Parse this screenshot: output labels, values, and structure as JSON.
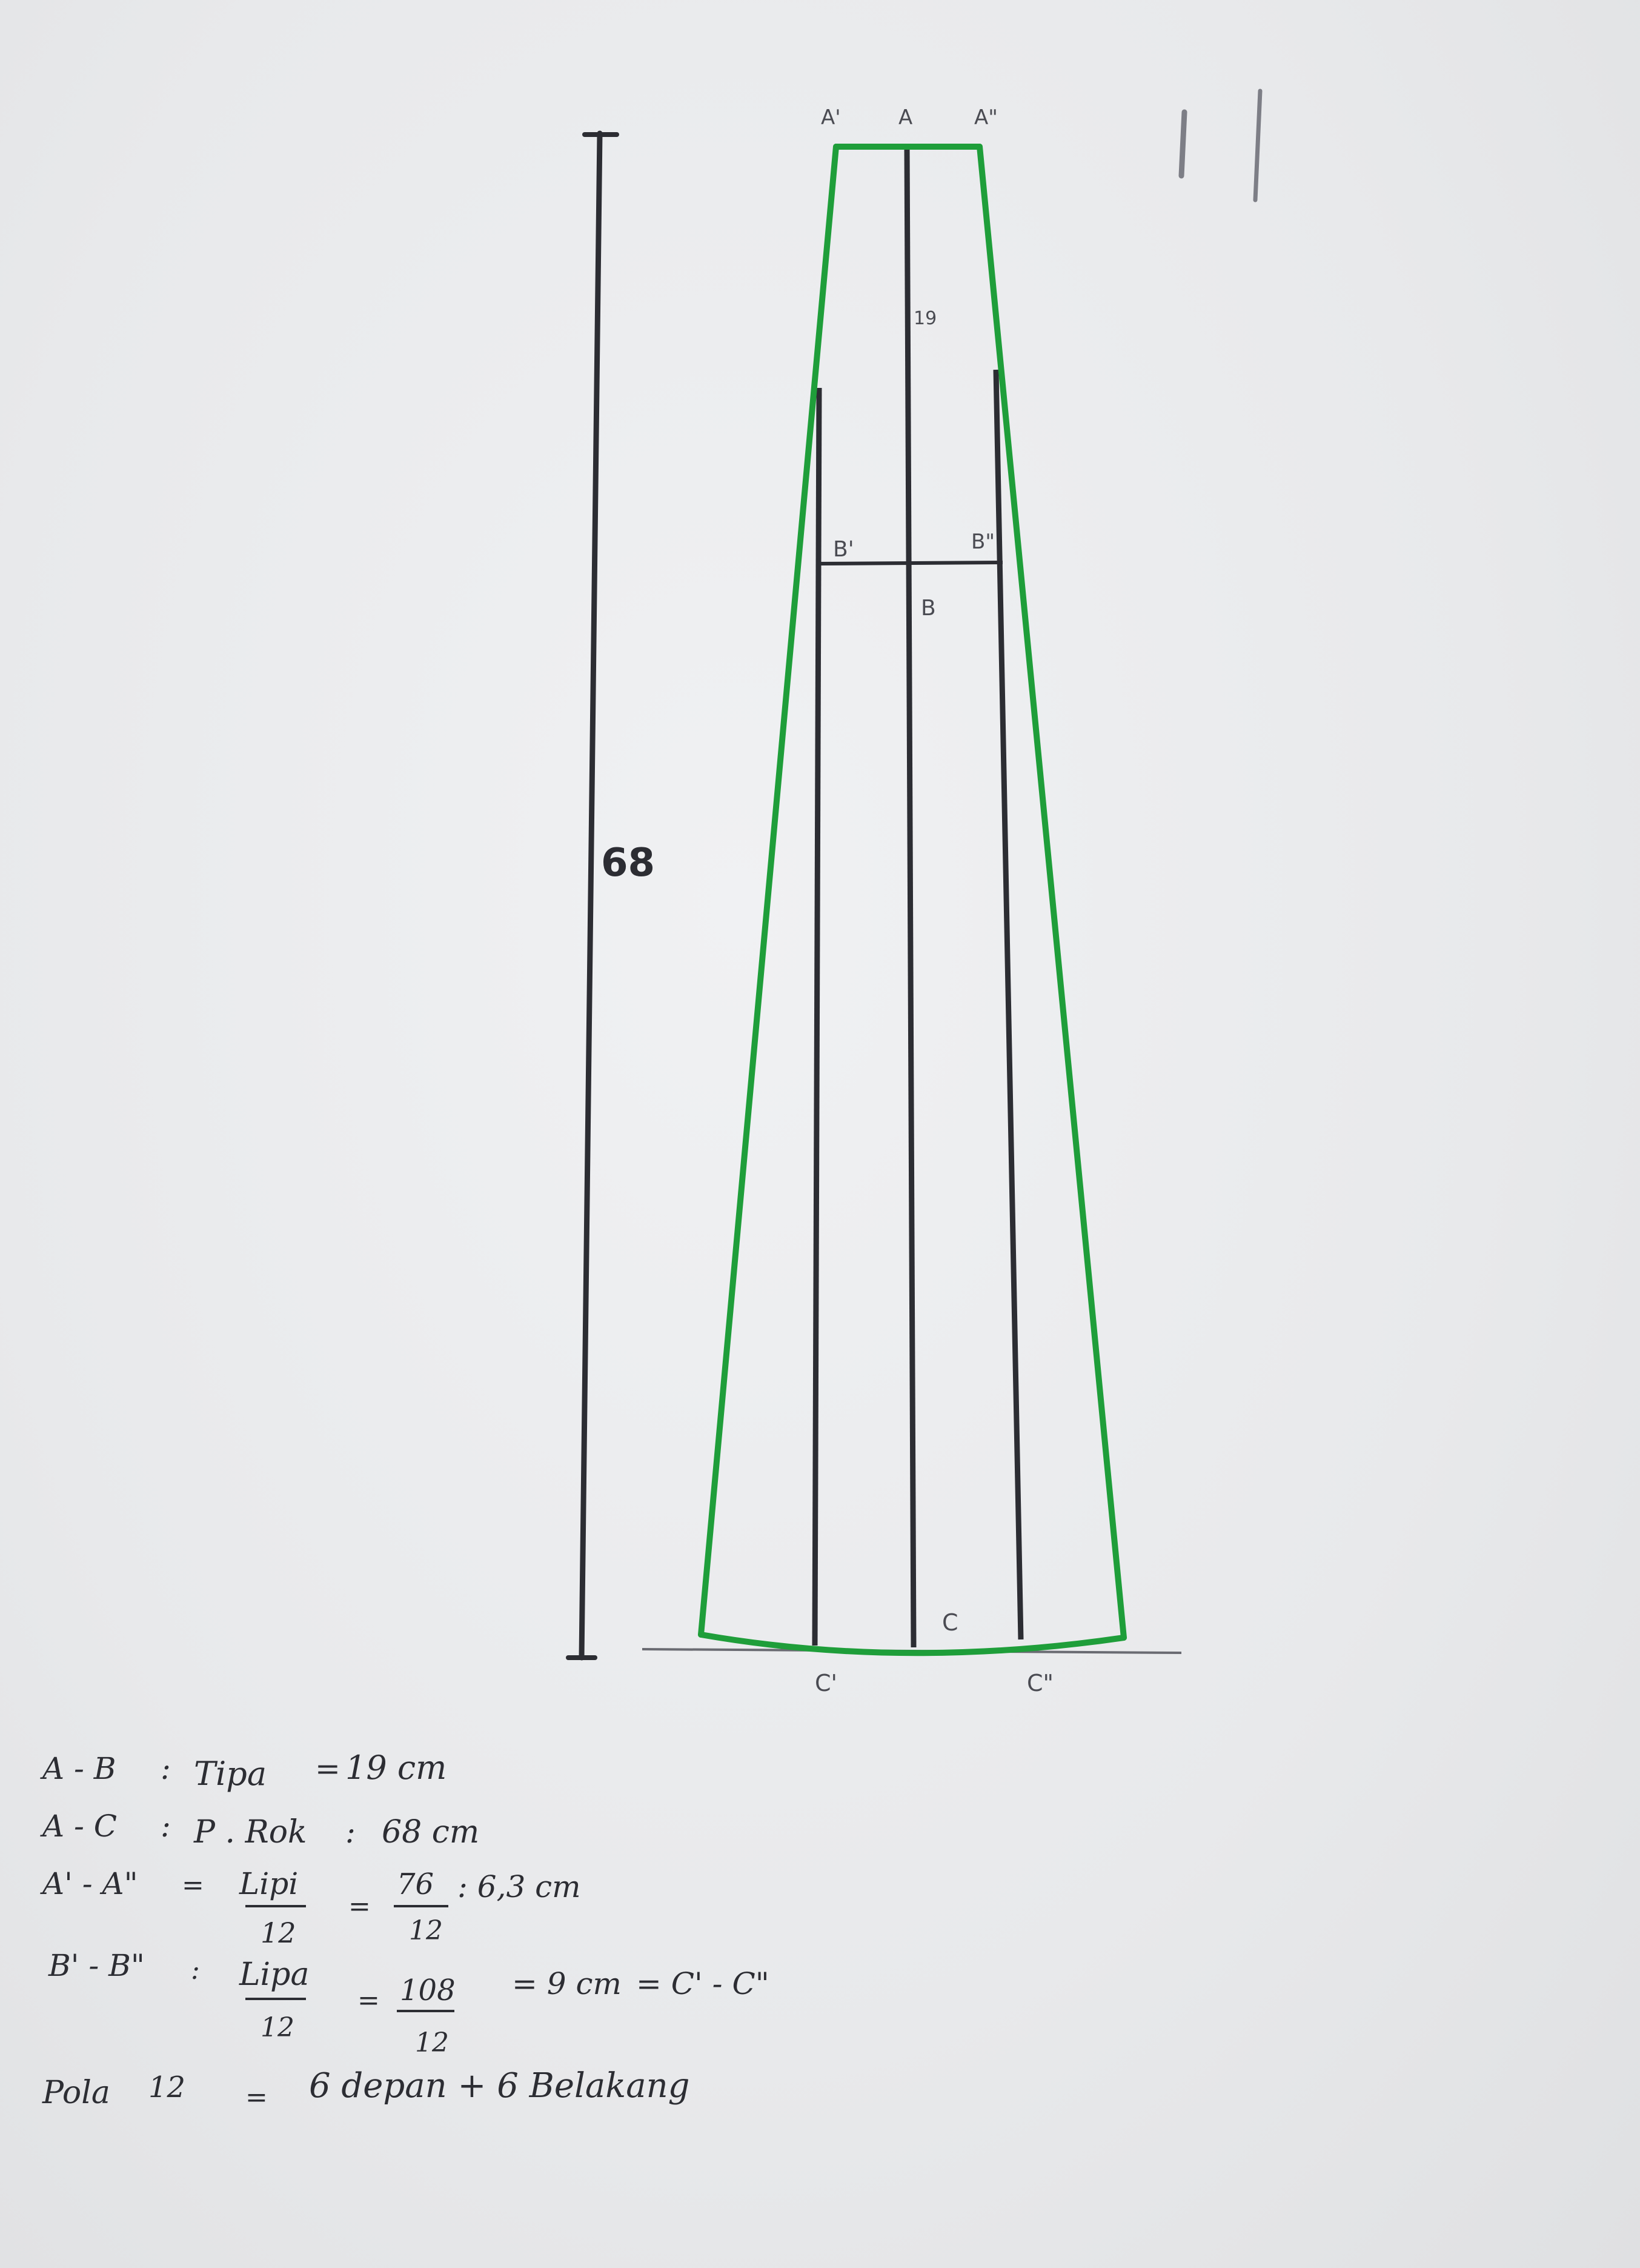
{
  "diagram": {
    "colors": {
      "paper": "#e9eaec",
      "pencil": "#2c2d33",
      "marker_green": "#1f9e3a"
    },
    "labels": {
      "a_prime": "A'",
      "a": "A",
      "a_double": "A\"",
      "b_prime": "B'",
      "b": "B",
      "b_double": "B\"",
      "c_prime": "C'",
      "c": "C",
      "c_double": "C\"",
      "length": "68",
      "ab_length": "19",
      "corner_marks": "| |"
    },
    "notes": [
      {
        "lhs": "A - B",
        "eq": ":",
        "name": "Tipa",
        "eq2": "=",
        "value": "19 cm"
      },
      {
        "lhs": "A - C",
        "eq": ":",
        "name": "P . Rok",
        "eq2": ":",
        "value": "68 cm"
      },
      {
        "lhs": "A' - A\"",
        "eq": "=",
        "frac1_num": "Lipi",
        "frac1_den": "12",
        "eq2": "=",
        "frac2_num": "76",
        "frac2_den": "12",
        "result": ": 6,3 cm"
      },
      {
        "lhs": "B' - B\"",
        "eq": ":",
        "frac1_num": "Lipa",
        "frac1_den": "12",
        "eq2": "=",
        "frac2_num": "108",
        "frac2_den": "12",
        "result": "= 9 cm",
        "tail": "= C' - C\""
      }
    ],
    "pola": {
      "label": "Pola",
      "count": "12",
      "eq": "=",
      "text": "6 depan  +  6  Belakang"
    }
  }
}
